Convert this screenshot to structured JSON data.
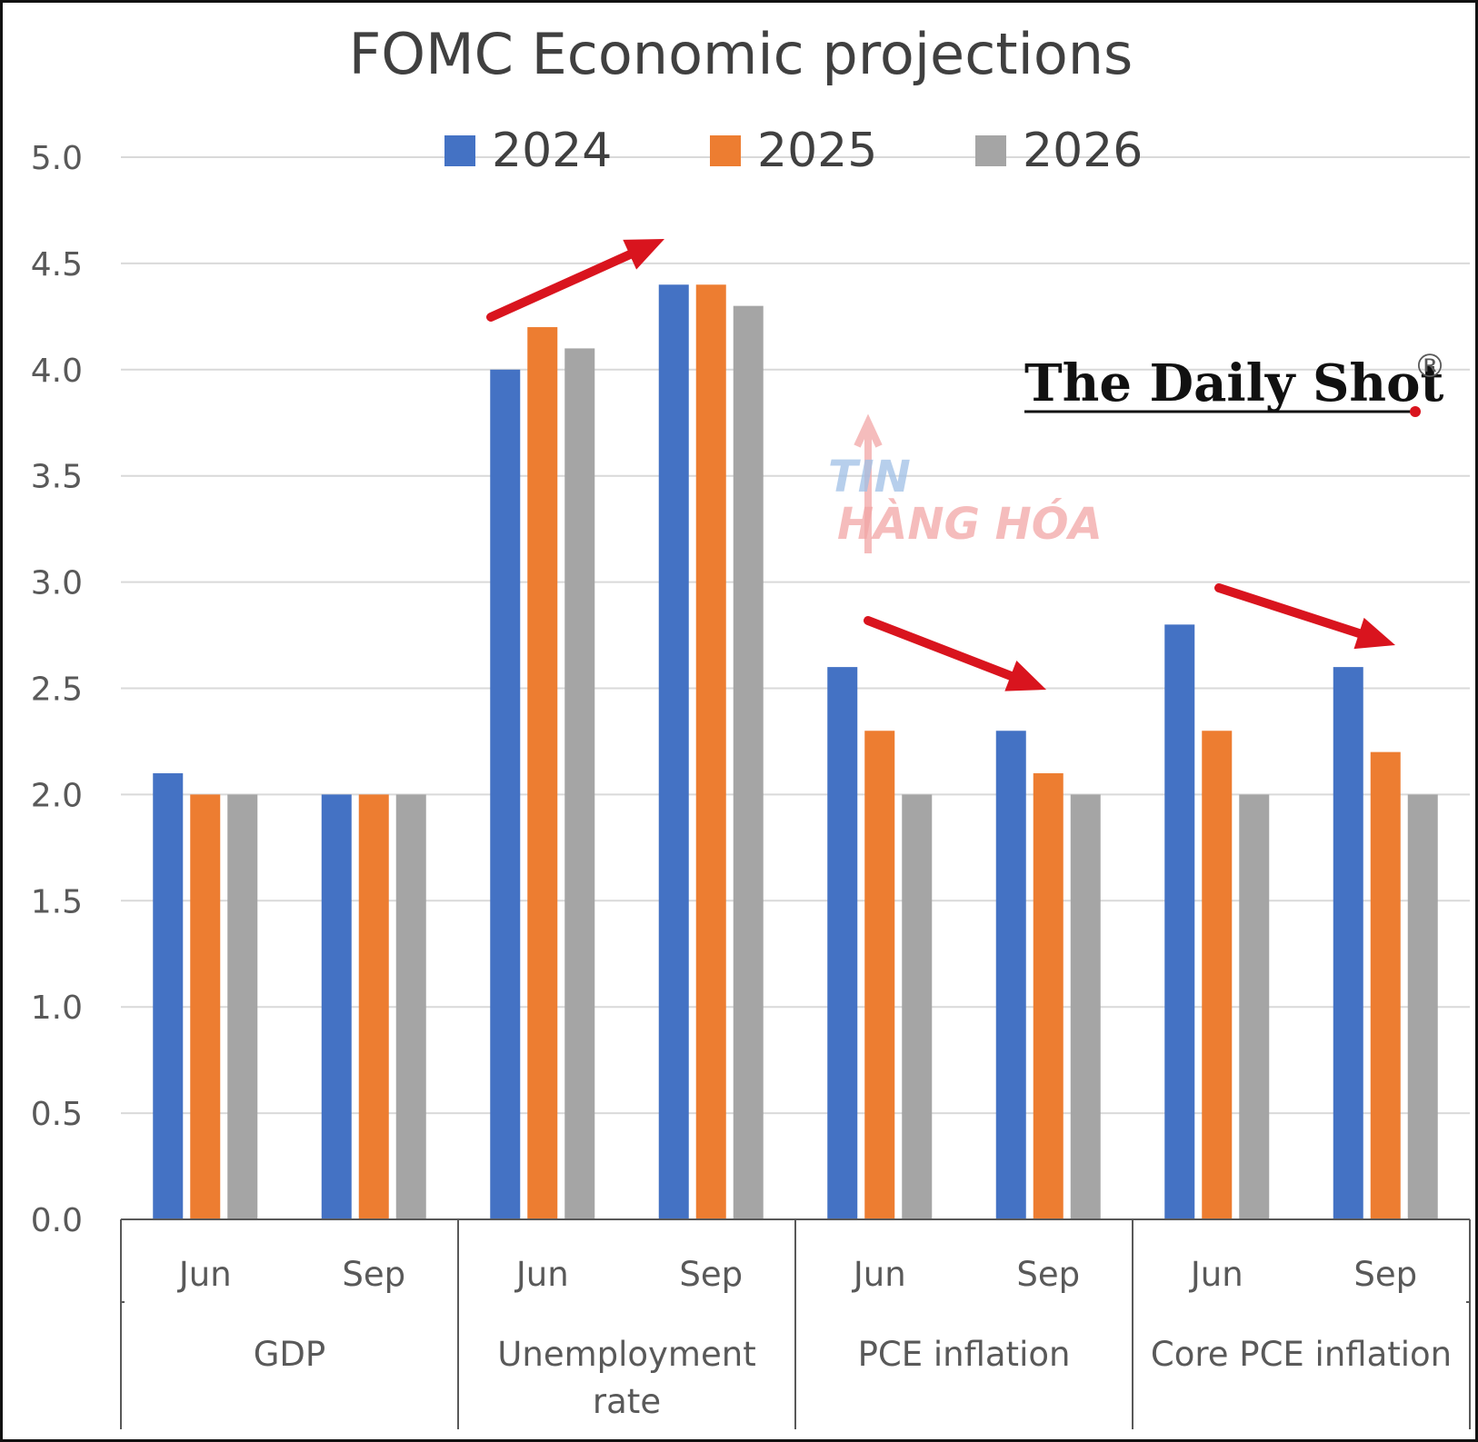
{
  "chart_data": {
    "type": "bar",
    "title": "FOMC Economic projections",
    "xlabel": "",
    "ylabel": "",
    "ylim": [
      0,
      5
    ],
    "yticks": [
      "0.0",
      "0.5",
      "1.0",
      "1.5",
      "2.0",
      "2.5",
      "3.0",
      "3.5",
      "4.0",
      "4.5",
      "5.0"
    ],
    "grid": true,
    "legend_position": "top",
    "groups": [
      "GDP",
      "Unemployment rate",
      "PCE inflation",
      "Core PCE inflation"
    ],
    "categories": [
      "Jun",
      "Sep",
      "Jun",
      "Sep",
      "Jun",
      "Sep",
      "Jun",
      "Sep"
    ],
    "series": [
      {
        "name": "2024",
        "color": "#4472c4",
        "values": [
          2.1,
          2.0,
          4.0,
          4.4,
          2.6,
          2.3,
          2.8,
          2.6
        ]
      },
      {
        "name": "2025",
        "color": "#ed7d31",
        "values": [
          2.0,
          2.0,
          4.2,
          4.4,
          2.3,
          2.1,
          2.3,
          2.2
        ]
      },
      {
        "name": "2026",
        "color": "#a5a5a5",
        "values": [
          2.0,
          2.0,
          4.1,
          4.3,
          2.0,
          2.0,
          2.0,
          2.0
        ]
      }
    ],
    "annotations": {
      "brand": "The Daily Shot",
      "brand_mark": "®",
      "watermark_line1": "TIN",
      "watermark_line2": "HÀNG HÓA",
      "arrow_color": "#d9141e"
    }
  }
}
